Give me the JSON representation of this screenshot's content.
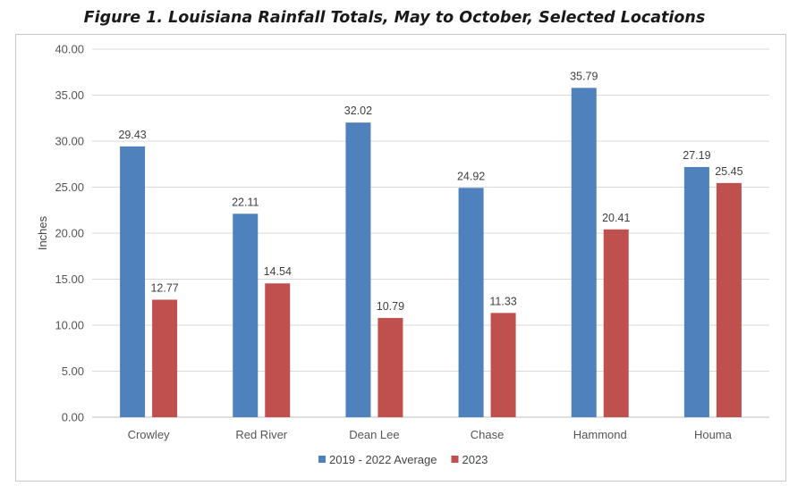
{
  "chart_data": {
    "type": "bar",
    "title": "Figure 1.  Louisiana Rainfall Totals, May to October, Selected Locations",
    "ylabel": "Inches",
    "xlabel": "",
    "ylim": [
      0,
      40
    ],
    "yticks": [
      "0.00",
      "5.00",
      "10.00",
      "15.00",
      "20.00",
      "25.00",
      "30.00",
      "35.00",
      "40.00"
    ],
    "grid": true,
    "legend_position": "bottom",
    "categories": [
      "Crowley",
      "Red River",
      "Dean Lee",
      "Chase",
      "Hammond",
      "Houma"
    ],
    "series": [
      {
        "name": "2019 - 2022 Average",
        "color": "#4f81bd",
        "values": [
          29.43,
          22.11,
          32.02,
          24.92,
          35.79,
          27.19
        ],
        "labels": [
          "29.43",
          "22.11",
          "32.02",
          "24.92",
          "35.79",
          "27.19"
        ]
      },
      {
        "name": "2023",
        "color": "#c0504d",
        "values": [
          12.77,
          14.54,
          10.79,
          11.33,
          20.41,
          25.45
        ],
        "labels": [
          "12.77",
          "14.54",
          "10.79",
          "11.33",
          "20.41",
          "25.45"
        ]
      }
    ]
  }
}
